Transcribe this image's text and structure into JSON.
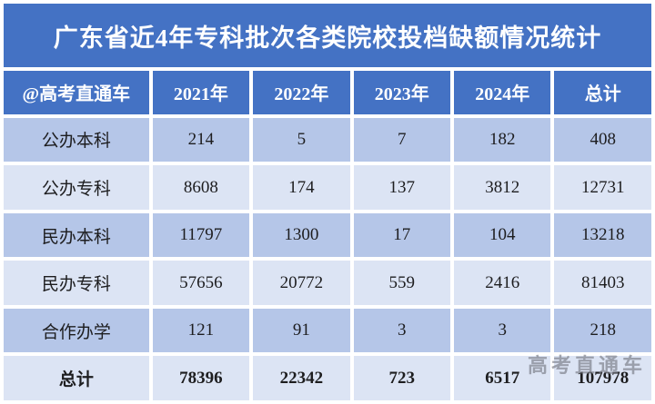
{
  "chart_data": {
    "type": "table",
    "title": "广东省近4年专科批次各类院校投档缺额情况统计",
    "columns": [
      "@高考直通车",
      "2021年",
      "2022年",
      "2023年",
      "2024年",
      "总计"
    ],
    "rows": [
      [
        "公办本科",
        "214",
        "5",
        "7",
        "182",
        "408"
      ],
      [
        "公办专科",
        "8608",
        "174",
        "137",
        "3812",
        "12731"
      ],
      [
        "民办本科",
        "11797",
        "1300",
        "17",
        "104",
        "13218"
      ],
      [
        "民办专科",
        "57656",
        "20772",
        "559",
        "2416",
        "81403"
      ],
      [
        "合作办学",
        "121",
        "91",
        "3",
        "3",
        "218"
      ],
      [
        "总计",
        "78396",
        "22342",
        "723",
        "6517",
        "107978"
      ]
    ],
    "layout_hints": {
      "total_row_bold": true,
      "alternating_row_shading": true
    }
  },
  "watermark": "高考直通车",
  "colors": {
    "header_blue": "#4472C4",
    "row_shade_dark": "#B5C6E8",
    "row_shade_light": "#DCE4F4",
    "header_text": "#FFFFFF",
    "body_text": "#1D1D1F",
    "watermark_gray": "#767A84"
  }
}
